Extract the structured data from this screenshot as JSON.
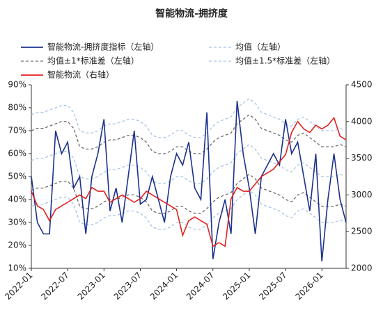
{
  "chart_data": {
    "type": "line",
    "title": "智能物流-拥挤度",
    "categories": [
      "2022-01",
      null,
      null,
      null,
      null,
      null,
      "2022-07",
      null,
      null,
      null,
      null,
      null,
      "2023-01",
      null,
      null,
      null,
      null,
      null,
      "2023-07",
      null,
      null,
      null,
      null,
      null,
      "2024-01",
      null,
      null,
      null,
      null,
      null,
      "2024-07",
      null,
      null,
      null,
      null,
      null,
      "2025-01",
      null,
      null,
      null,
      null,
      null,
      "2025-07",
      null,
      null,
      null,
      null,
      null,
      "2026-01",
      null,
      null,
      null,
      null
    ],
    "ylim": [
      10,
      90
    ],
    "yticks": [
      {
        "value": 10,
        "label": "10%"
      },
      {
        "value": 20,
        "label": "20%"
      },
      {
        "value": 30,
        "label": "30%"
      },
      {
        "value": 40,
        "label": "40%"
      },
      {
        "value": 50,
        "label": "50%"
      },
      {
        "value": 60,
        "label": "60%"
      },
      {
        "value": 70,
        "label": "70%"
      },
      {
        "value": 80,
        "label": "80%"
      },
      {
        "value": 90,
        "label": "90%"
      }
    ],
    "y2lim": [
      2000,
      4500
    ],
    "y2ticks": [
      2000,
      2500,
      3000,
      3500,
      4000,
      4500
    ],
    "series": [
      {
        "name": "智能物流-拥挤度指标（左轴）",
        "color": "#1c318c",
        "values": [
          50,
          30,
          25,
          25,
          70,
          60,
          65,
          45,
          50,
          25,
          50,
          60,
          75,
          35,
          45,
          30,
          50,
          70,
          38,
          40,
          50,
          40,
          30,
          50,
          60,
          55,
          65,
          45,
          40,
          78,
          14,
          30,
          40,
          25,
          83,
          60,
          45,
          25,
          50,
          55,
          60,
          55,
          75,
          60,
          65,
          50,
          35,
          60,
          13,
          40,
          60,
          40,
          30
        ]
      },
      {
        "name": "均值（左轴）",
        "color": "#a9c3e6",
        "dash": true,
        "values": [
          57,
          58,
          58,
          59,
          60,
          61,
          61,
          58,
          50,
          49,
          49,
          50,
          52,
          53,
          53,
          54,
          55,
          55,
          54,
          52,
          48,
          47,
          47,
          48,
          50,
          50,
          48,
          47,
          47,
          49,
          52,
          54,
          55,
          56,
          60,
          62,
          64,
          62,
          58,
          57,
          56,
          55,
          53,
          52,
          55,
          56,
          54,
          52,
          50,
          50,
          50,
          51,
          50
        ]
      },
      {
        "name": "均值±1*标准差（左轴）",
        "color": "#6b6b6b",
        "dash": true,
        "upper": [
          70,
          71,
          71,
          72,
          73,
          74,
          74,
          71,
          63,
          62,
          62,
          63,
          65,
          66,
          66,
          67,
          68,
          68,
          67,
          65,
          61,
          60,
          60,
          61,
          63,
          63,
          61,
          60,
          60,
          62,
          65,
          67,
          68,
          69,
          73,
          75,
          77,
          75,
          71,
          70,
          69,
          68,
          66,
          65,
          68,
          69,
          67,
          65,
          63,
          63,
          63,
          64,
          63
        ],
        "lower": [
          44,
          45,
          45,
          46,
          47,
          48,
          48,
          45,
          37,
          36,
          36,
          37,
          39,
          40,
          40,
          41,
          42,
          42,
          41,
          39,
          35,
          34,
          34,
          35,
          37,
          37,
          35,
          34,
          34,
          36,
          39,
          41,
          42,
          43,
          47,
          49,
          51,
          49,
          45,
          44,
          43,
          42,
          40,
          39,
          42,
          43,
          41,
          39,
          37,
          37,
          37,
          38,
          37
        ]
      },
      {
        "name": "均值±1.5*标准差（左轴）",
        "color": "#a9c3e6",
        "dash": true,
        "upper": [
          77,
          78,
          78,
          79,
          80,
          81,
          81,
          78,
          70,
          69,
          69,
          70,
          72,
          73,
          73,
          74,
          75,
          75,
          74,
          72,
          68,
          67,
          67,
          68,
          70,
          70,
          68,
          67,
          67,
          69,
          72,
          74,
          75,
          76,
          80,
          82,
          84,
          82,
          78,
          77,
          76,
          75,
          73,
          72,
          75,
          76,
          74,
          72,
          70,
          70,
          70,
          71,
          70
        ],
        "lower": [
          37,
          38,
          38,
          39,
          40,
          41,
          41,
          38,
          30,
          29,
          29,
          30,
          32,
          33,
          33,
          34,
          35,
          35,
          34,
          32,
          28,
          27,
          27,
          28,
          30,
          30,
          28,
          27,
          27,
          29,
          32,
          34,
          35,
          36,
          40,
          42,
          44,
          42,
          38,
          37,
          36,
          35,
          33,
          32,
          35,
          36,
          34,
          32,
          30,
          30,
          30,
          31,
          30
        ]
      },
      {
        "name": "智能物流（右轴）",
        "color": "#e0211f",
        "axis": "y2",
        "values": [
          3050,
          2850,
          2800,
          2650,
          2800,
          2850,
          2900,
          2950,
          3000,
          2950,
          3100,
          3050,
          3050,
          2900,
          2950,
          3000,
          2950,
          2900,
          2950,
          3050,
          3000,
          2950,
          2900,
          2850,
          2800,
          2450,
          2650,
          2700,
          2650,
          2600,
          2300,
          2350,
          2300,
          2950,
          3100,
          3050,
          3050,
          3150,
          3250,
          3300,
          3350,
          3450,
          3550,
          3850,
          4000,
          3900,
          3850,
          3950,
          3900,
          3950,
          4050,
          3800,
          3750
        ]
      }
    ]
  }
}
